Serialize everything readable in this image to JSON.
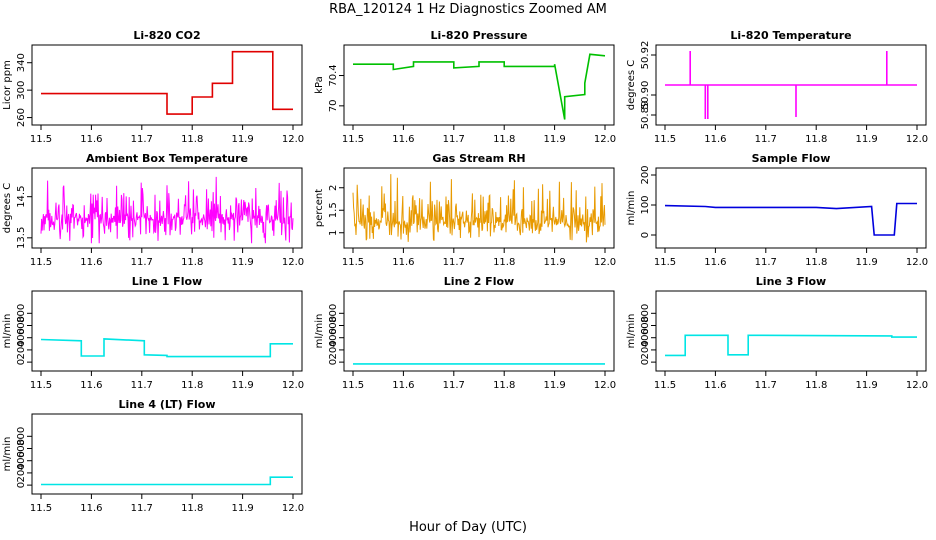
{
  "figure": {
    "title": "RBA_120124  1 Hz Diagnostics Zoomed AM",
    "xlabel": "Hour of Day (UTC)"
  },
  "chart_data": [
    {
      "type": "line",
      "title": "Li-820 CO2",
      "ylabel": "Licor ppm",
      "color": "#e00000",
      "xlim": [
        11.5,
        12.0
      ],
      "ylim": [
        255,
        360
      ],
      "xticks": [
        "11.5",
        "11.6",
        "11.7",
        "11.8",
        "11.9",
        "12.0"
      ],
      "yticks": [
        260,
        300,
        340
      ],
      "series": [
        {
          "x": [
            11.5,
            11.75,
            11.75,
            11.8,
            11.8,
            11.84,
            11.84,
            11.88,
            11.88,
            11.96,
            11.96,
            12.0
          ],
          "y": [
            295,
            295,
            265,
            265,
            290,
            290,
            310,
            310,
            356,
            356,
            272,
            272
          ]
        }
      ]
    },
    {
      "type": "line",
      "title": "Li-820 Pressure",
      "ylabel": "kPa",
      "color": "#00c000",
      "xlim": [
        11.5,
        12.0
      ],
      "ylim": [
        69.8,
        70.75
      ],
      "xticks": [
        "11.5",
        "11.6",
        "11.7",
        "11.8",
        "11.9",
        "12.0"
      ],
      "yticks": [
        70.0,
        70.4
      ],
      "series": [
        {
          "x": [
            11.5,
            11.58,
            11.58,
            11.62,
            11.62,
            11.7,
            11.7,
            11.75,
            11.75,
            11.8,
            11.8,
            11.9,
            11.9,
            11.92,
            11.92,
            11.96,
            11.96,
            11.97,
            11.97,
            12.0
          ],
          "y": [
            70.55,
            70.55,
            70.48,
            70.52,
            70.58,
            70.58,
            70.5,
            70.52,
            70.58,
            70.58,
            70.52,
            70.52,
            70.55,
            69.82,
            70.12,
            70.15,
            70.3,
            70.68,
            70.68,
            70.66
          ]
        }
      ]
    },
    {
      "type": "line",
      "title": "Li-820 Temperature",
      "ylabel": "degrees C",
      "color": "#ff00ff",
      "xlim": [
        11.5,
        12.0
      ],
      "ylim": [
        50.887,
        50.923
      ],
      "xticks": [
        "11.5",
        "11.6",
        "11.7",
        "11.8",
        "11.9",
        "12.0"
      ],
      "yticks": [
        50.89,
        50.9,
        50.92
      ],
      "series": [
        {
          "x": [
            11.5,
            11.55,
            11.55,
            11.55,
            11.58,
            11.58,
            11.58,
            11.585,
            11.585,
            11.585,
            11.76,
            11.76,
            11.76,
            11.94,
            11.94,
            11.94,
            12.0
          ],
          "y": [
            50.905,
            50.905,
            50.922,
            50.905,
            50.905,
            50.888,
            50.905,
            50.905,
            50.888,
            50.905,
            50.905,
            50.889,
            50.905,
            50.905,
            50.922,
            50.905,
            50.905
          ]
        }
      ]
    },
    {
      "type": "line",
      "title": "Ambient Box Temperature",
      "ylabel": "degrees C",
      "color": "#ff00ff",
      "xlim": [
        11.5,
        12.0
      ],
      "ylim": [
        13.35,
        15.1
      ],
      "xticks": [
        "11.5",
        "11.6",
        "11.7",
        "11.8",
        "11.9",
        "12.0"
      ],
      "yticks": [
        13.5,
        14.5
      ],
      "noise": {
        "base": 14.0,
        "spread_low": 0.6,
        "spread_high": 0.95,
        "points": 420,
        "seed": 7
      }
    },
    {
      "type": "line",
      "title": "Gas Stream RH",
      "ylabel": "percent",
      "color": "#e89a00",
      "xlim": [
        11.5,
        12.0
      ],
      "ylim": [
        0.75,
        2.35
      ],
      "xticks": [
        "11.5",
        "11.6",
        "11.7",
        "11.8",
        "11.9",
        "12.0"
      ],
      "yticks": [
        1.0,
        1.5,
        2.0
      ],
      "noise": {
        "base": 1.25,
        "spread_low": 0.45,
        "spread_high": 1.05,
        "points": 420,
        "seed": 19
      }
    },
    {
      "type": "line",
      "title": "Sample Flow",
      "ylabel": "ml/min",
      "color": "#0000dd",
      "xlim": [
        11.5,
        12.0
      ],
      "ylim": [
        -30,
        210
      ],
      "xticks": [
        "11.5",
        "11.6",
        "11.7",
        "11.8",
        "11.9",
        "12.0"
      ],
      "yticks": [
        0,
        100,
        200
      ],
      "series": [
        {
          "x": [
            11.5,
            11.58,
            11.6,
            11.8,
            11.84,
            11.91,
            11.915,
            11.955,
            11.96,
            12.0
          ],
          "y": [
            98,
            95,
            92,
            92,
            88,
            95,
            0,
            0,
            105,
            105
          ]
        }
      ]
    },
    {
      "type": "line",
      "title": "Line 1 Flow",
      "ylabel": "ml/min",
      "color": "#00e5e5",
      "xlim": [
        11.5,
        12.0
      ],
      "ylim": [
        -80,
        1100
      ],
      "xticks": [
        "11.5",
        "11.6",
        "11.7",
        "11.8",
        "11.9",
        "12.0"
      ],
      "yticks": [
        0,
        200,
        400,
        600,
        800
      ],
      "series": [
        {
          "x": [
            11.5,
            11.58,
            11.58,
            11.625,
            11.625,
            11.705,
            11.705,
            11.75,
            11.75,
            11.955,
            11.955,
            12.0
          ],
          "y": [
            370,
            350,
            100,
            100,
            380,
            350,
            120,
            110,
            90,
            90,
            300,
            300
          ]
        }
      ]
    },
    {
      "type": "line",
      "title": "Line 2 Flow",
      "ylabel": "ml/min",
      "color": "#00e5e5",
      "xlim": [
        11.5,
        12.0
      ],
      "ylim": [
        -80,
        1100
      ],
      "xticks": [
        "11.5",
        "11.6",
        "11.7",
        "11.8",
        "11.9",
        "12.0"
      ],
      "yticks": [
        0,
        200,
        400,
        600,
        800
      ],
      "series": [
        {
          "x": [
            11.5,
            12.0
          ],
          "y": [
            -30,
            -30
          ]
        }
      ]
    },
    {
      "type": "line",
      "title": "Line 3 Flow",
      "ylabel": "ml/min",
      "color": "#00e5e5",
      "xlim": [
        11.5,
        12.0
      ],
      "ylim": [
        -80,
        1100
      ],
      "xticks": [
        "11.5",
        "11.6",
        "11.7",
        "11.8",
        "11.9",
        "12.0"
      ],
      "yticks": [
        0,
        200,
        400,
        600,
        800
      ],
      "series": [
        {
          "x": [
            11.5,
            11.54,
            11.54,
            11.625,
            11.625,
            11.665,
            11.665,
            11.95,
            11.95,
            12.0
          ],
          "y": [
            110,
            110,
            440,
            440,
            120,
            120,
            440,
            430,
            410,
            410
          ]
        }
      ]
    },
    {
      "type": "line",
      "title": "Line 4 (LT) Flow",
      "ylabel": "ml/min",
      "color": "#00e5e5",
      "xlim": [
        11.5,
        12.0
      ],
      "ylim": [
        -80,
        1100
      ],
      "xticks": [
        "11.5",
        "11.6",
        "11.7",
        "11.8",
        "11.9",
        "12.0"
      ],
      "yticks": [
        0,
        200,
        400,
        600,
        800
      ],
      "series": [
        {
          "x": [
            11.5,
            11.955,
            11.955,
            12.0
          ],
          "y": [
            10,
            10,
            130,
            130
          ]
        }
      ]
    }
  ]
}
